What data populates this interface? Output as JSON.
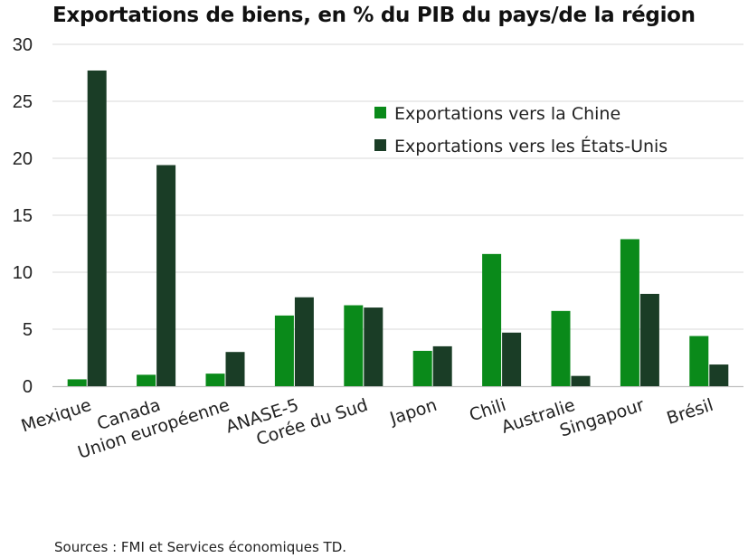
{
  "chart_data": {
    "type": "bar",
    "title": "Exportations de biens, en % du PIB du pays/de la région",
    "xlabel": "",
    "ylabel": "",
    "ylim": [
      0,
      30
    ],
    "yticks": [
      0,
      5,
      10,
      15,
      20,
      25,
      30
    ],
    "grid": true,
    "legend_position": "top-right",
    "categories": [
      "Mexique",
      "Canada",
      "Union européenne",
      "ANASE-5",
      "Corée du Sud",
      "Japon",
      "Chili",
      "Australie",
      "Singapour",
      "Brésil"
    ],
    "series": [
      {
        "name": "Exportations vers la Chine",
        "color": "#0a8a1a",
        "values": [
          0.6,
          1.0,
          1.1,
          6.2,
          7.1,
          3.1,
          11.6,
          6.6,
          12.9,
          4.4
        ]
      },
      {
        "name": "Exportations vers les États-Unis",
        "color": "#1a3d26",
        "values": [
          27.7,
          19.4,
          3.0,
          7.8,
          6.9,
          3.5,
          4.7,
          0.9,
          8.1,
          1.9
        ]
      }
    ]
  },
  "source": "Sources : FMI et Services économiques TD."
}
